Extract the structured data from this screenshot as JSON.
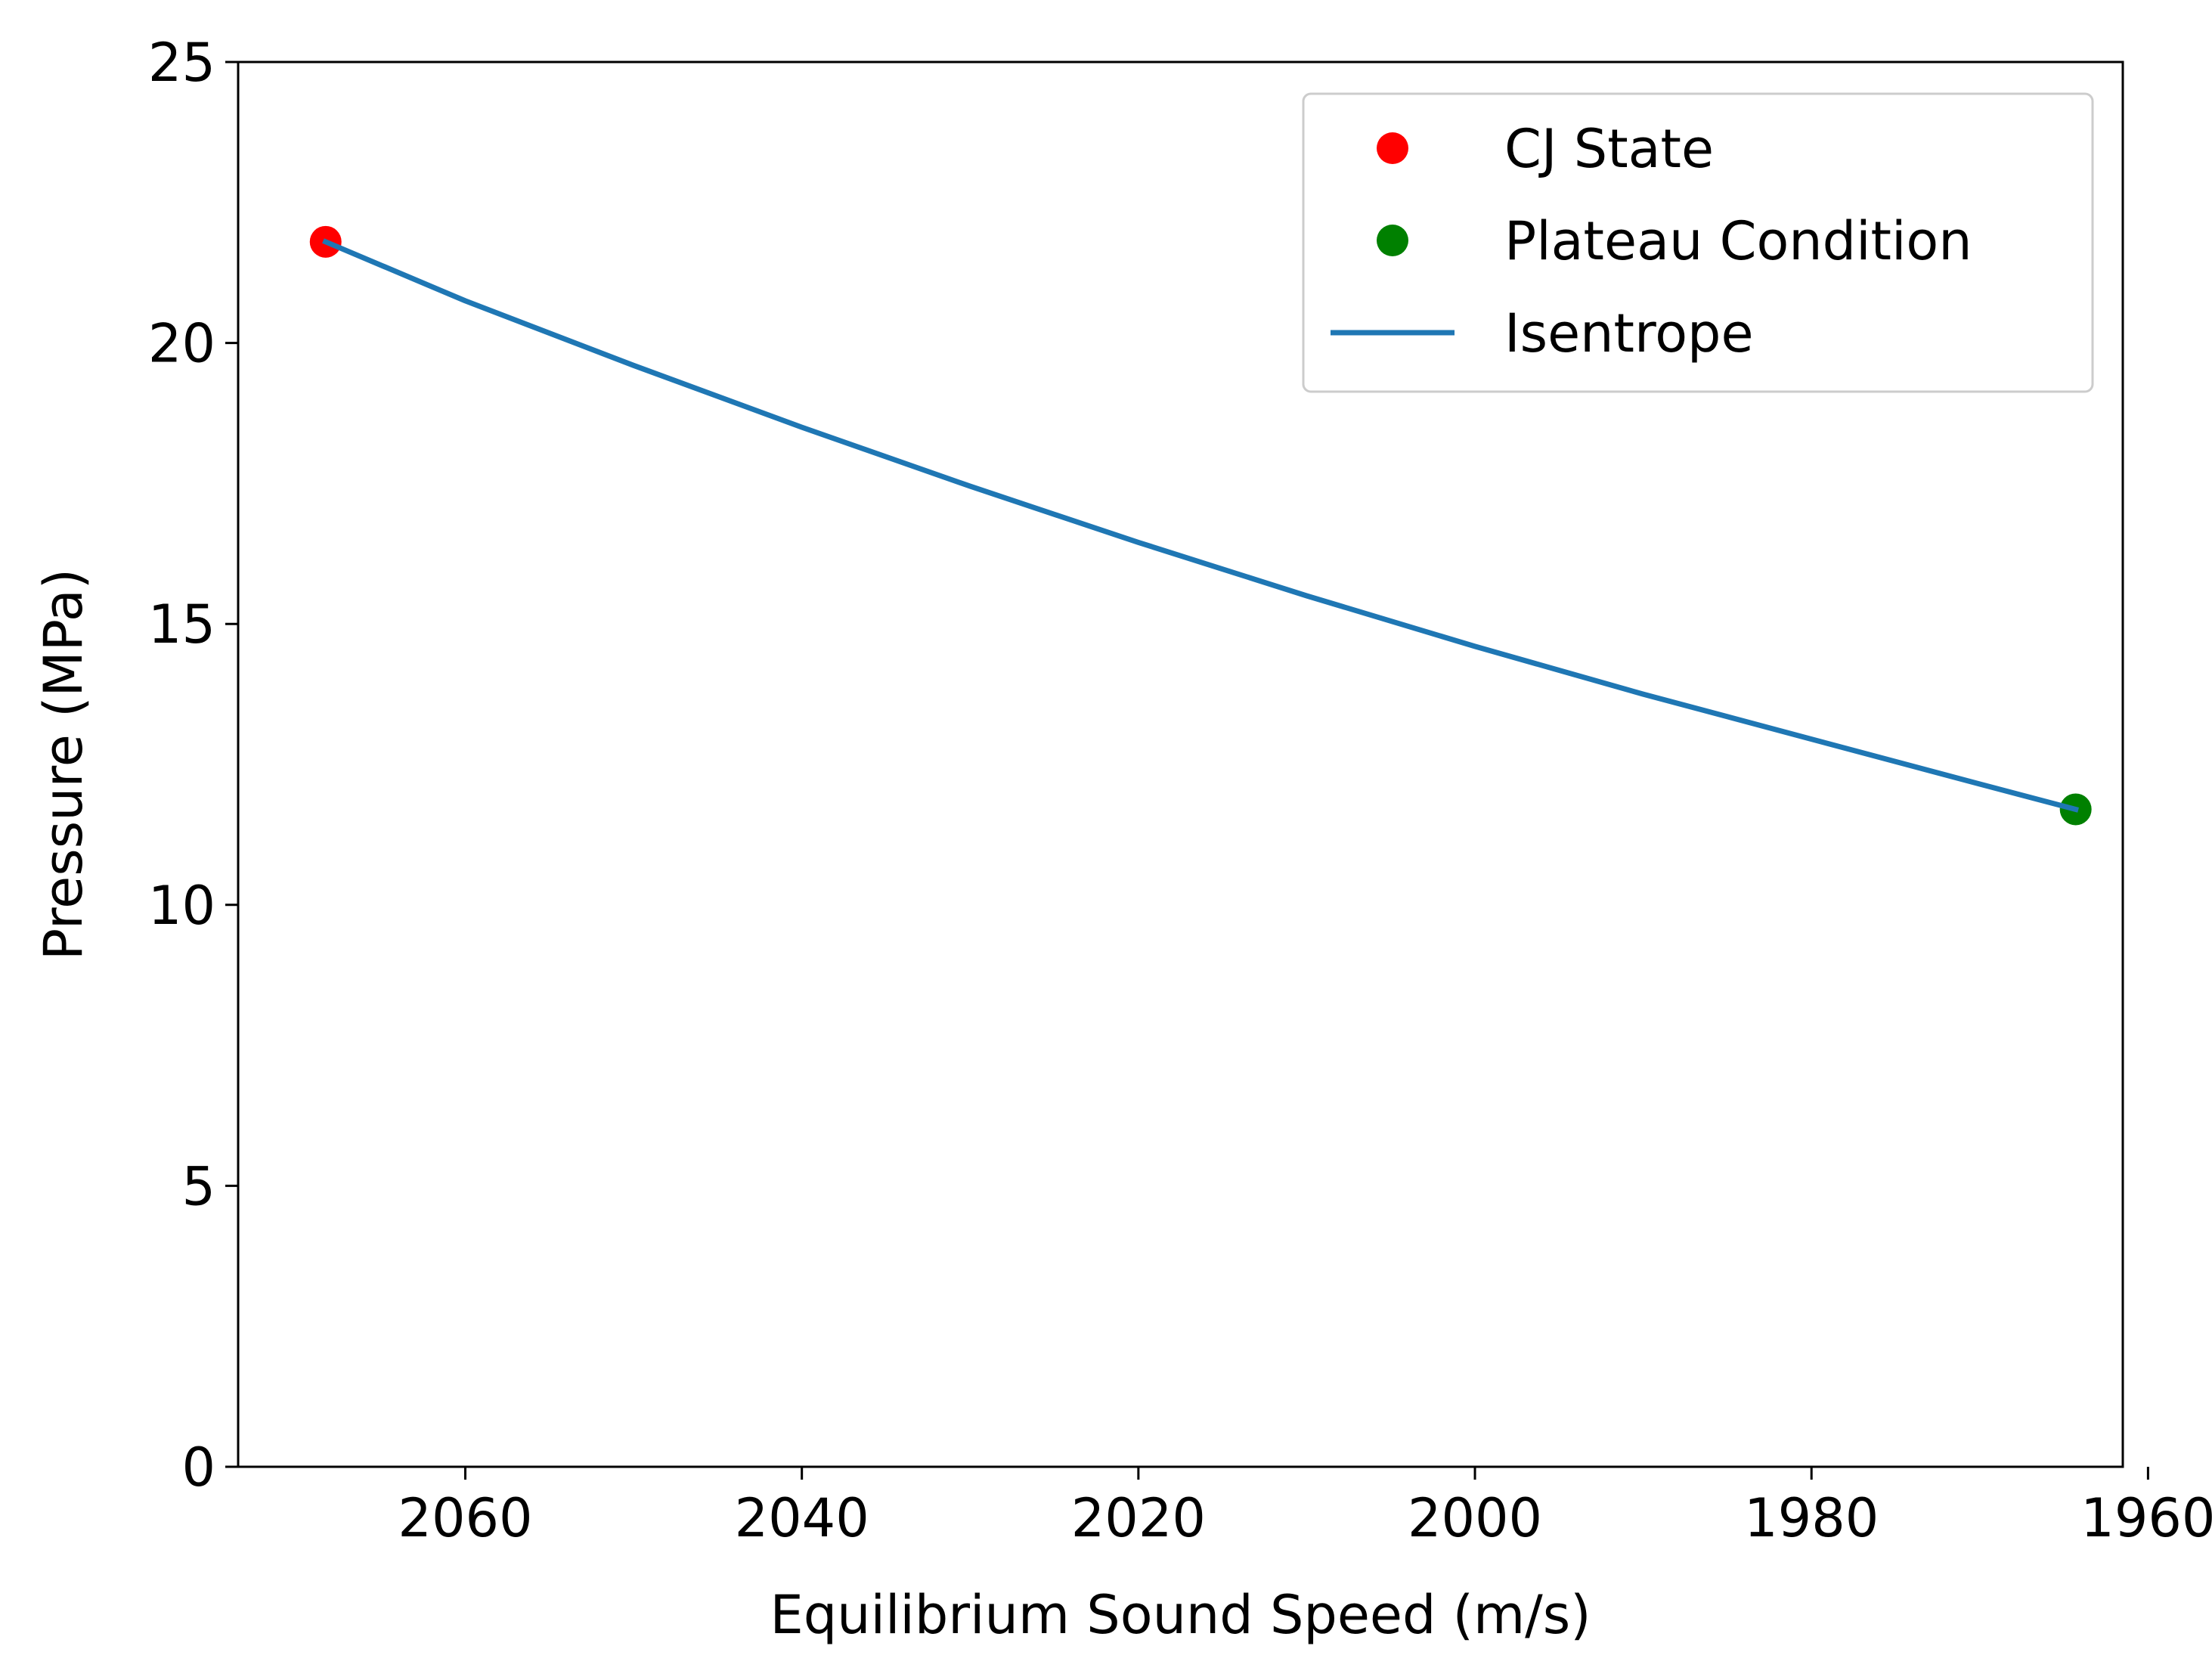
{
  "chart_data": {
    "type": "line",
    "title": "",
    "xlabel": "Equilibrium Sound Speed (m/s)",
    "ylabel": "Pressure (MPa)",
    "x_axis_inverted": true,
    "xlim": [
      2073.5,
      1961.5
    ],
    "ylim": [
      0,
      25
    ],
    "xticks": [
      2060,
      2040,
      2020,
      2000,
      1980,
      1960
    ],
    "xtick_labels": [
      "2060",
      "2040",
      "2020",
      "2000",
      "1980",
      "1960"
    ],
    "yticks": [
      0,
      5,
      10,
      15,
      20,
      25
    ],
    "ytick_labels": [
      "0",
      "5",
      "10",
      "15",
      "20",
      "25"
    ],
    "grid": false,
    "legend_position": "upper right",
    "series": [
      {
        "name": "CJ State",
        "kind": "scatter",
        "color": "#ff0000",
        "x": [
          2068.3
        ],
        "y": [
          21.8
        ]
      },
      {
        "name": "Plateau Condition",
        "kind": "scatter",
        "color": "#008000",
        "x": [
          1964.3
        ],
        "y": [
          11.7
        ]
      },
      {
        "name": "Isentrope",
        "kind": "line",
        "color": "#1f77b4",
        "x": [
          2068.3,
          2060,
          2050,
          2040,
          2030,
          2020,
          2010,
          2000,
          1990,
          1980,
          1970,
          1964.3
        ],
        "y": [
          21.8,
          20.75,
          19.6,
          18.5,
          17.45,
          16.45,
          15.5,
          14.6,
          13.75,
          12.95,
          12.15,
          11.7
        ]
      }
    ]
  }
}
